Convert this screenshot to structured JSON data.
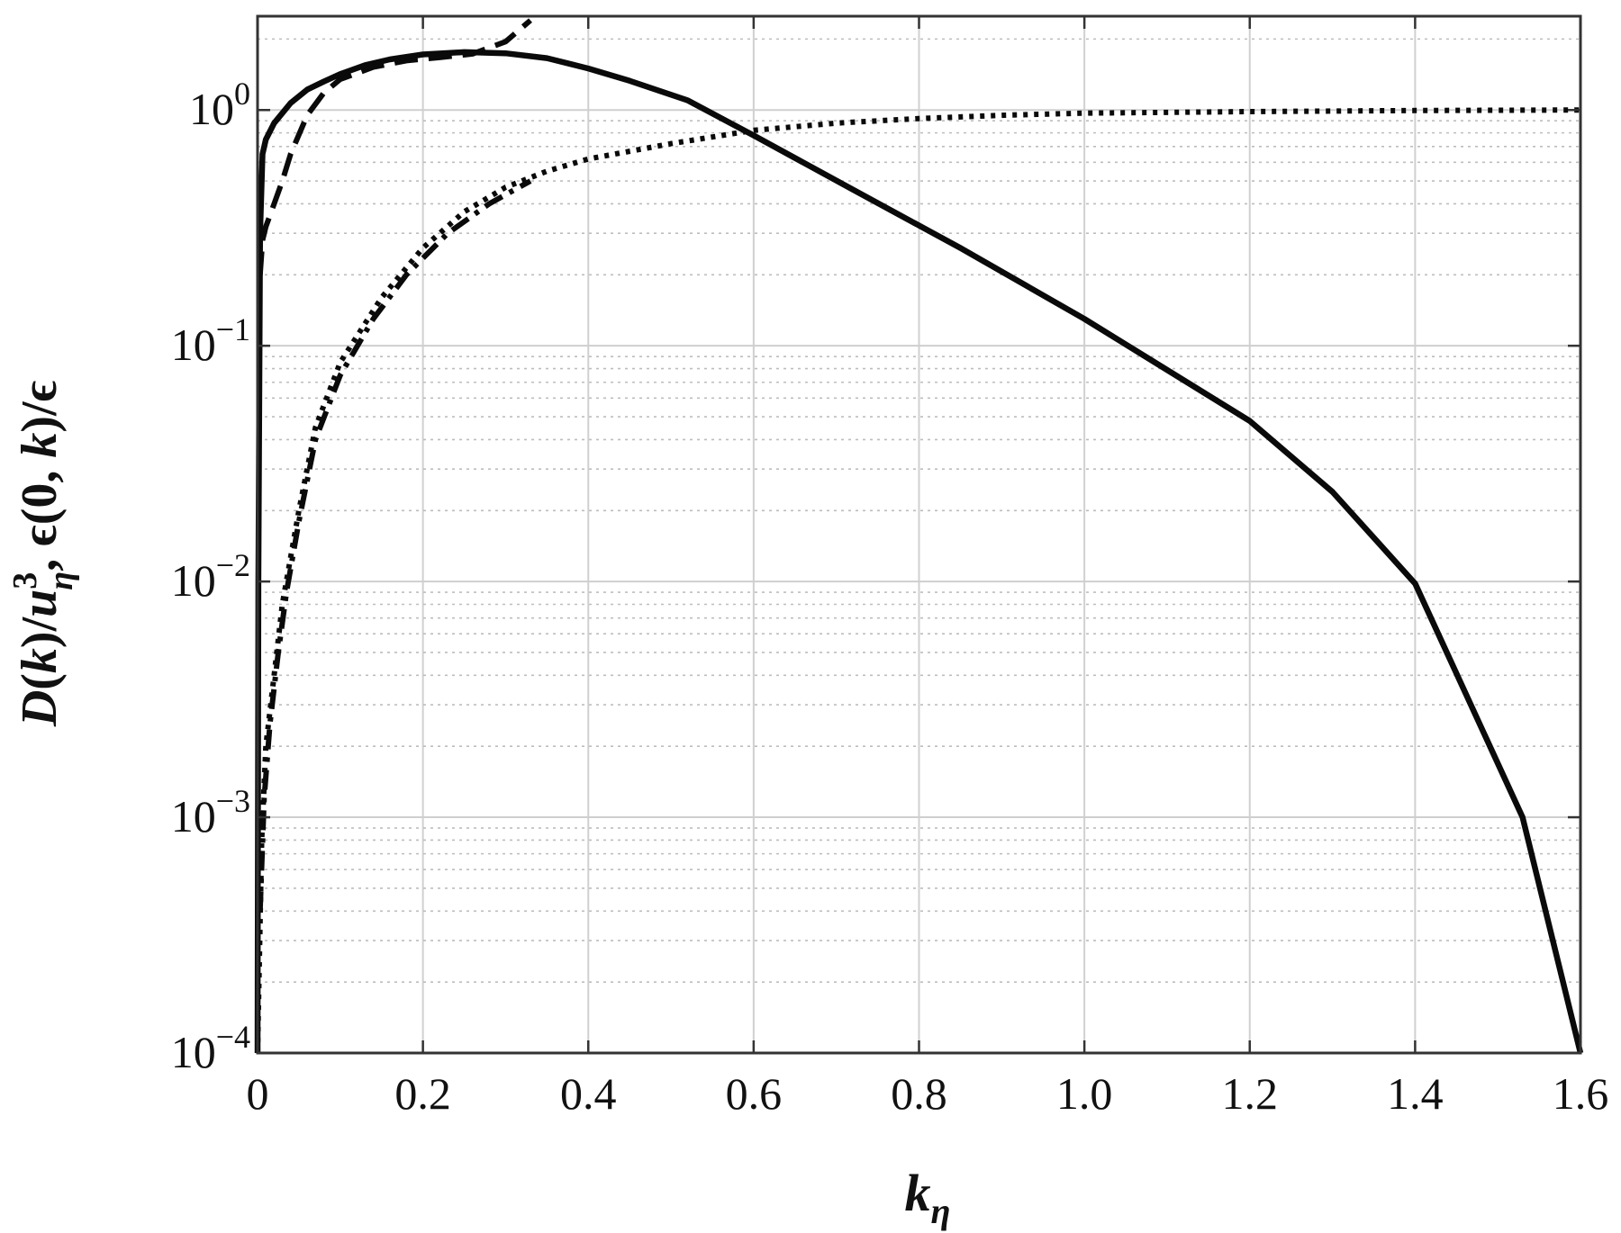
{
  "chart_data": {
    "type": "line",
    "title": "",
    "xlabel": "k_η",
    "ylabel": "D(k)/u_η³, ϵ(0, k)/ϵ",
    "xlim": [
      0,
      1.6
    ],
    "ylim": [
      0.0001,
      2.5
    ],
    "yscale": "log",
    "grid": true,
    "legend": "none",
    "x_ticks": [
      "0",
      "0.2",
      "0.4",
      "0.6",
      "0.8",
      "1.0",
      "1.2",
      "1.4",
      "1.6"
    ],
    "y_ticks": [
      {
        "base": "10",
        "exp": "−4",
        "value": 0.0001
      },
      {
        "base": "10",
        "exp": "−3",
        "value": 0.001
      },
      {
        "base": "10",
        "exp": "−2",
        "value": 0.01
      },
      {
        "base": "10",
        "exp": "−1",
        "value": 0.1
      },
      {
        "base": "10",
        "exp": "0",
        "value": 1
      }
    ],
    "series": [
      {
        "style": "solid",
        "x": [
          0.0,
          0.001,
          0.003,
          0.006,
          0.01,
          0.02,
          0.04,
          0.06,
          0.08,
          0.1,
          0.13,
          0.16,
          0.2,
          0.25,
          0.3,
          0.35,
          0.4,
          0.45,
          0.52,
          0.6,
          0.72,
          0.85,
          1.0,
          1.2,
          1.3,
          1.4,
          1.53,
          1.6
        ],
        "y": [
          0.0001,
          0.01,
          0.3,
          0.65,
          0.75,
          0.88,
          1.07,
          1.22,
          1.32,
          1.42,
          1.55,
          1.64,
          1.72,
          1.76,
          1.74,
          1.66,
          1.5,
          1.33,
          1.1,
          0.78,
          0.46,
          0.26,
          0.13,
          0.048,
          0.024,
          0.0098,
          0.001,
          0.0001
        ]
      },
      {
        "style": "dashed",
        "x": [
          0.003,
          0.006,
          0.01,
          0.02,
          0.03,
          0.04,
          0.06,
          0.08,
          0.1,
          0.14,
          0.18,
          0.22,
          0.26,
          0.3,
          0.33
        ],
        "y": [
          0.2,
          0.28,
          0.32,
          0.4,
          0.5,
          0.65,
          0.95,
          1.18,
          1.35,
          1.52,
          1.62,
          1.67,
          1.73,
          1.95,
          2.4
        ]
      },
      {
        "style": "dash-dot",
        "x": [
          0.003,
          0.008,
          0.015,
          0.025,
          0.035,
          0.05,
          0.07,
          0.1,
          0.14,
          0.18,
          0.23,
          0.28,
          0.33
        ],
        "y": [
          0.0004,
          0.0012,
          0.0025,
          0.005,
          0.009,
          0.018,
          0.04,
          0.075,
          0.13,
          0.2,
          0.3,
          0.4,
          0.5
        ]
      },
      {
        "style": "dotted",
        "x": [
          0.0,
          0.005,
          0.01,
          0.02,
          0.03,
          0.05,
          0.07,
          0.1,
          0.15,
          0.2,
          0.25,
          0.3,
          0.35,
          0.4,
          0.5,
          0.6,
          0.7,
          0.8,
          0.9,
          1.0,
          1.2,
          1.4,
          1.6
        ],
        "y": [
          0.0001,
          0.0008,
          0.002,
          0.004,
          0.008,
          0.02,
          0.045,
          0.085,
          0.16,
          0.26,
          0.37,
          0.47,
          0.55,
          0.62,
          0.72,
          0.82,
          0.88,
          0.92,
          0.95,
          0.97,
          0.985,
          0.995,
          1.0
        ]
      }
    ]
  }
}
